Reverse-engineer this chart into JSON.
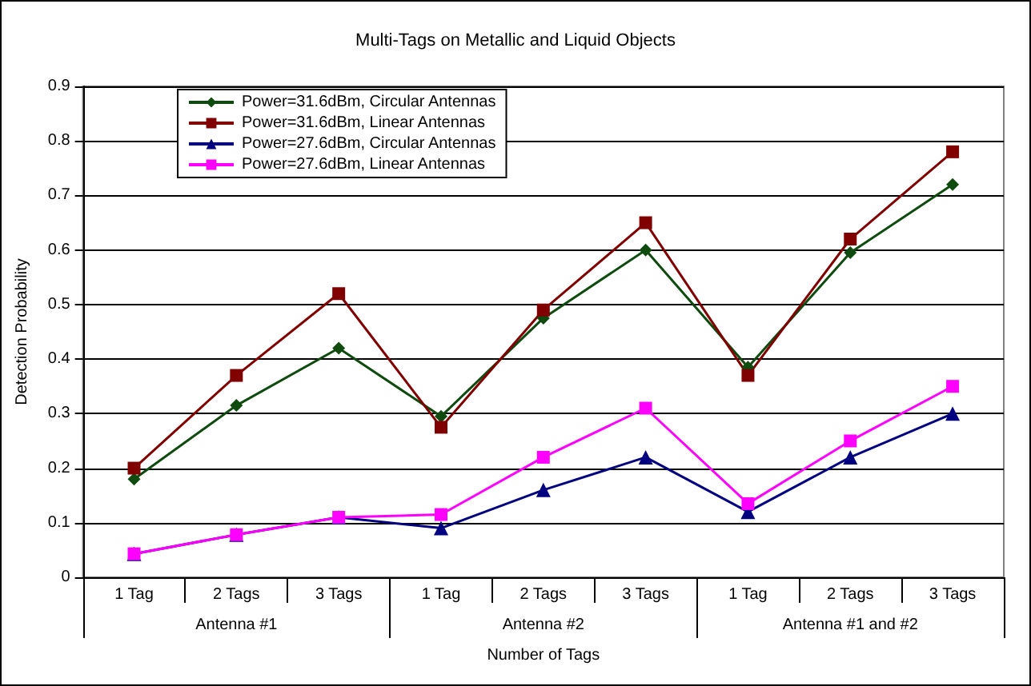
{
  "chart_data": {
    "type": "line",
    "title": "Multi-Tags on Metallic and Liquid Objects",
    "xlabel": "Number of Tags",
    "ylabel": "Detection Probability",
    "categories": [
      "1 Tag",
      "2 Tags",
      "3 Tags",
      "1 Tag",
      "2 Tags",
      "3 Tags",
      "1 Tag",
      "2 Tags",
      "3 Tags"
    ],
    "annotations": [
      "Antenna #1",
      "Antenna #2",
      "Antenna #1 and #2"
    ],
    "series": [
      {
        "name": "Power=31.6dBm, Circular Antennas",
        "color": "#0f4a0f",
        "marker": "diamond",
        "values": [
          0.18,
          0.315,
          0.42,
          0.295,
          0.475,
          0.6,
          0.385,
          0.595,
          0.72
        ]
      },
      {
        "name": "Power=31.6dBm, Linear Antennas",
        "color": "#800000",
        "marker": "square",
        "values": [
          0.2,
          0.37,
          0.52,
          0.275,
          0.49,
          0.65,
          0.37,
          0.62,
          0.78
        ]
      },
      {
        "name": "Power=27.6dBm, Circular Antennas",
        "color": "#000080",
        "marker": "triangle",
        "values": [
          0.043,
          0.078,
          0.11,
          0.09,
          0.16,
          0.22,
          0.12,
          0.22,
          0.3
        ]
      },
      {
        "name": "Power=27.6dBm, Linear Antennas",
        "color": "#ff00ff",
        "marker": "square",
        "values": [
          0.043,
          0.078,
          0.11,
          0.115,
          0.22,
          0.31,
          0.135,
          0.25,
          0.35
        ]
      }
    ],
    "ylim": [
      0,
      0.9
    ],
    "yticks": [
      0,
      0.1,
      0.2,
      0.3,
      0.4,
      0.5,
      0.6,
      0.7,
      0.8,
      0.9
    ],
    "grid": "y",
    "legend": "top left",
    "line_style": "solid"
  }
}
